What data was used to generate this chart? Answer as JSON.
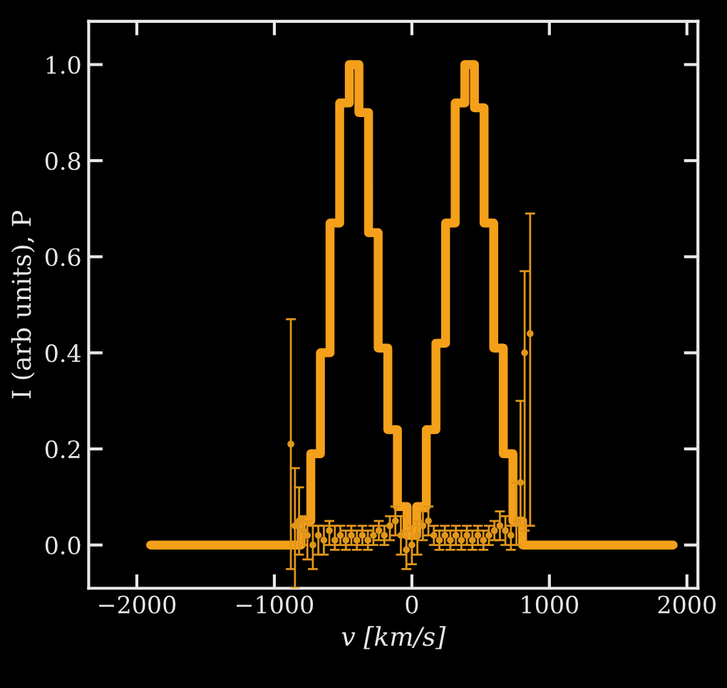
{
  "chart_data": {
    "type": "step",
    "xlabel": "v [km/s]",
    "ylabel": "I (arb units), P",
    "xlim": [
      -2350,
      2080
    ],
    "ylim": [
      -0.09,
      1.09
    ],
    "xticks": [
      {
        "value": -2000,
        "label": "−2000"
      },
      {
        "value": -1000,
        "label": "−1000"
      },
      0,
      1000,
      2000
    ],
    "yticks": [
      {
        "value": 0,
        "label": "0.0"
      },
      {
        "value": 0.2,
        "label": "0.2"
      },
      {
        "value": 0.4,
        "label": "0.4"
      },
      {
        "value": 0.6,
        "label": "0.6"
      },
      {
        "value": 0.8,
        "label": "0.8"
      },
      {
        "value": 1.0,
        "label": "1.0"
      }
    ],
    "grid": false,
    "legend": false,
    "series": [
      {
        "color": "#f5a01a",
        "x": [
          -1900,
          -805,
          -735,
          -665,
          -595,
          -525,
          -455,
          -385,
          -315,
          -245,
          -175,
          -105,
          -35,
          35,
          105,
          175,
          245,
          315,
          385,
          455,
          525,
          595,
          665,
          735,
          805,
          1900
        ],
        "values": [
          0,
          0.05,
          0.19,
          0.4,
          0.67,
          0.92,
          1.0,
          0.9,
          0.65,
          0.41,
          0.24,
          0.08,
          0.02,
          0.08,
          0.24,
          0.42,
          0.67,
          0.92,
          1.0,
          0.91,
          0.67,
          0.41,
          0.19,
          0.05,
          0,
          0
        ]
      },
      {
        "type": "scatter",
        "color": "#e0961a",
        "marker": "circle",
        "x": [
          -880,
          -850,
          -820,
          -790,
          -760,
          -720,
          -680,
          -640,
          -600,
          -560,
          -520,
          -480,
          -440,
          -400,
          -360,
          -320,
          -280,
          -240,
          -200,
          -160,
          -120,
          -80,
          -40,
          0,
          40,
          80,
          120,
          160,
          200,
          240,
          280,
          320,
          360,
          400,
          440,
          480,
          520,
          560,
          600,
          640,
          680,
          720,
          760,
          790,
          820,
          860
        ],
        "values": [
          0.21,
          0.04,
          0.05,
          0.03,
          0.02,
          0.0,
          0.02,
          0.01,
          0.03,
          0.01,
          0.02,
          0.01,
          0.02,
          0.01,
          0.02,
          0.01,
          0.02,
          0.03,
          0.02,
          0.04,
          0.05,
          0.02,
          -0.01,
          0.0,
          0.02,
          0.04,
          0.05,
          0.02,
          0.01,
          0.02,
          0.01,
          0.02,
          0.01,
          0.02,
          0.01,
          0.02,
          0.01,
          0.02,
          0.03,
          0.04,
          0.03,
          0.02,
          0.05,
          0.13,
          0.4,
          0.44
        ],
        "errors": [
          [
            -0.05,
            0.47
          ],
          [
            -0.09,
            0.16
          ],
          [
            -0.02,
            0.12
          ],
          [
            0.0,
            0.06
          ],
          [
            -0.03,
            0.05
          ],
          [
            -0.05,
            0.04
          ],
          [
            -0.02,
            0.04
          ],
          [
            -0.02,
            0.04
          ],
          [
            0.0,
            0.05
          ],
          [
            -0.01,
            0.04
          ],
          [
            0.0,
            0.04
          ],
          [
            -0.01,
            0.03
          ],
          [
            0.0,
            0.04
          ],
          [
            -0.01,
            0.03
          ],
          [
            0.0,
            0.04
          ],
          [
            -0.01,
            0.03
          ],
          [
            0.0,
            0.04
          ],
          [
            0.01,
            0.05
          ],
          [
            0.0,
            0.04
          ],
          [
            0.01,
            0.06
          ],
          [
            0.02,
            0.08
          ],
          [
            -0.02,
            0.06
          ],
          [
            -0.05,
            0.03
          ],
          [
            -0.04,
            0.04
          ],
          [
            -0.02,
            0.05
          ],
          [
            0.01,
            0.07
          ],
          [
            0.02,
            0.08
          ],
          [
            0.0,
            0.04
          ],
          [
            -0.01,
            0.03
          ],
          [
            0.0,
            0.04
          ],
          [
            -0.01,
            0.03
          ],
          [
            0.0,
            0.04
          ],
          [
            -0.01,
            0.03
          ],
          [
            0.0,
            0.04
          ],
          [
            -0.01,
            0.03
          ],
          [
            0.0,
            0.04
          ],
          [
            -0.01,
            0.03
          ],
          [
            0.0,
            0.04
          ],
          [
            0.01,
            0.05
          ],
          [
            0.01,
            0.07
          ],
          [
            0.0,
            0.06
          ],
          [
            -0.01,
            0.04
          ],
          [
            0.0,
            0.13
          ],
          [
            0.04,
            0.3
          ],
          [
            0.03,
            0.57
          ],
          [
            0.04,
            0.69
          ]
        ]
      }
    ]
  }
}
